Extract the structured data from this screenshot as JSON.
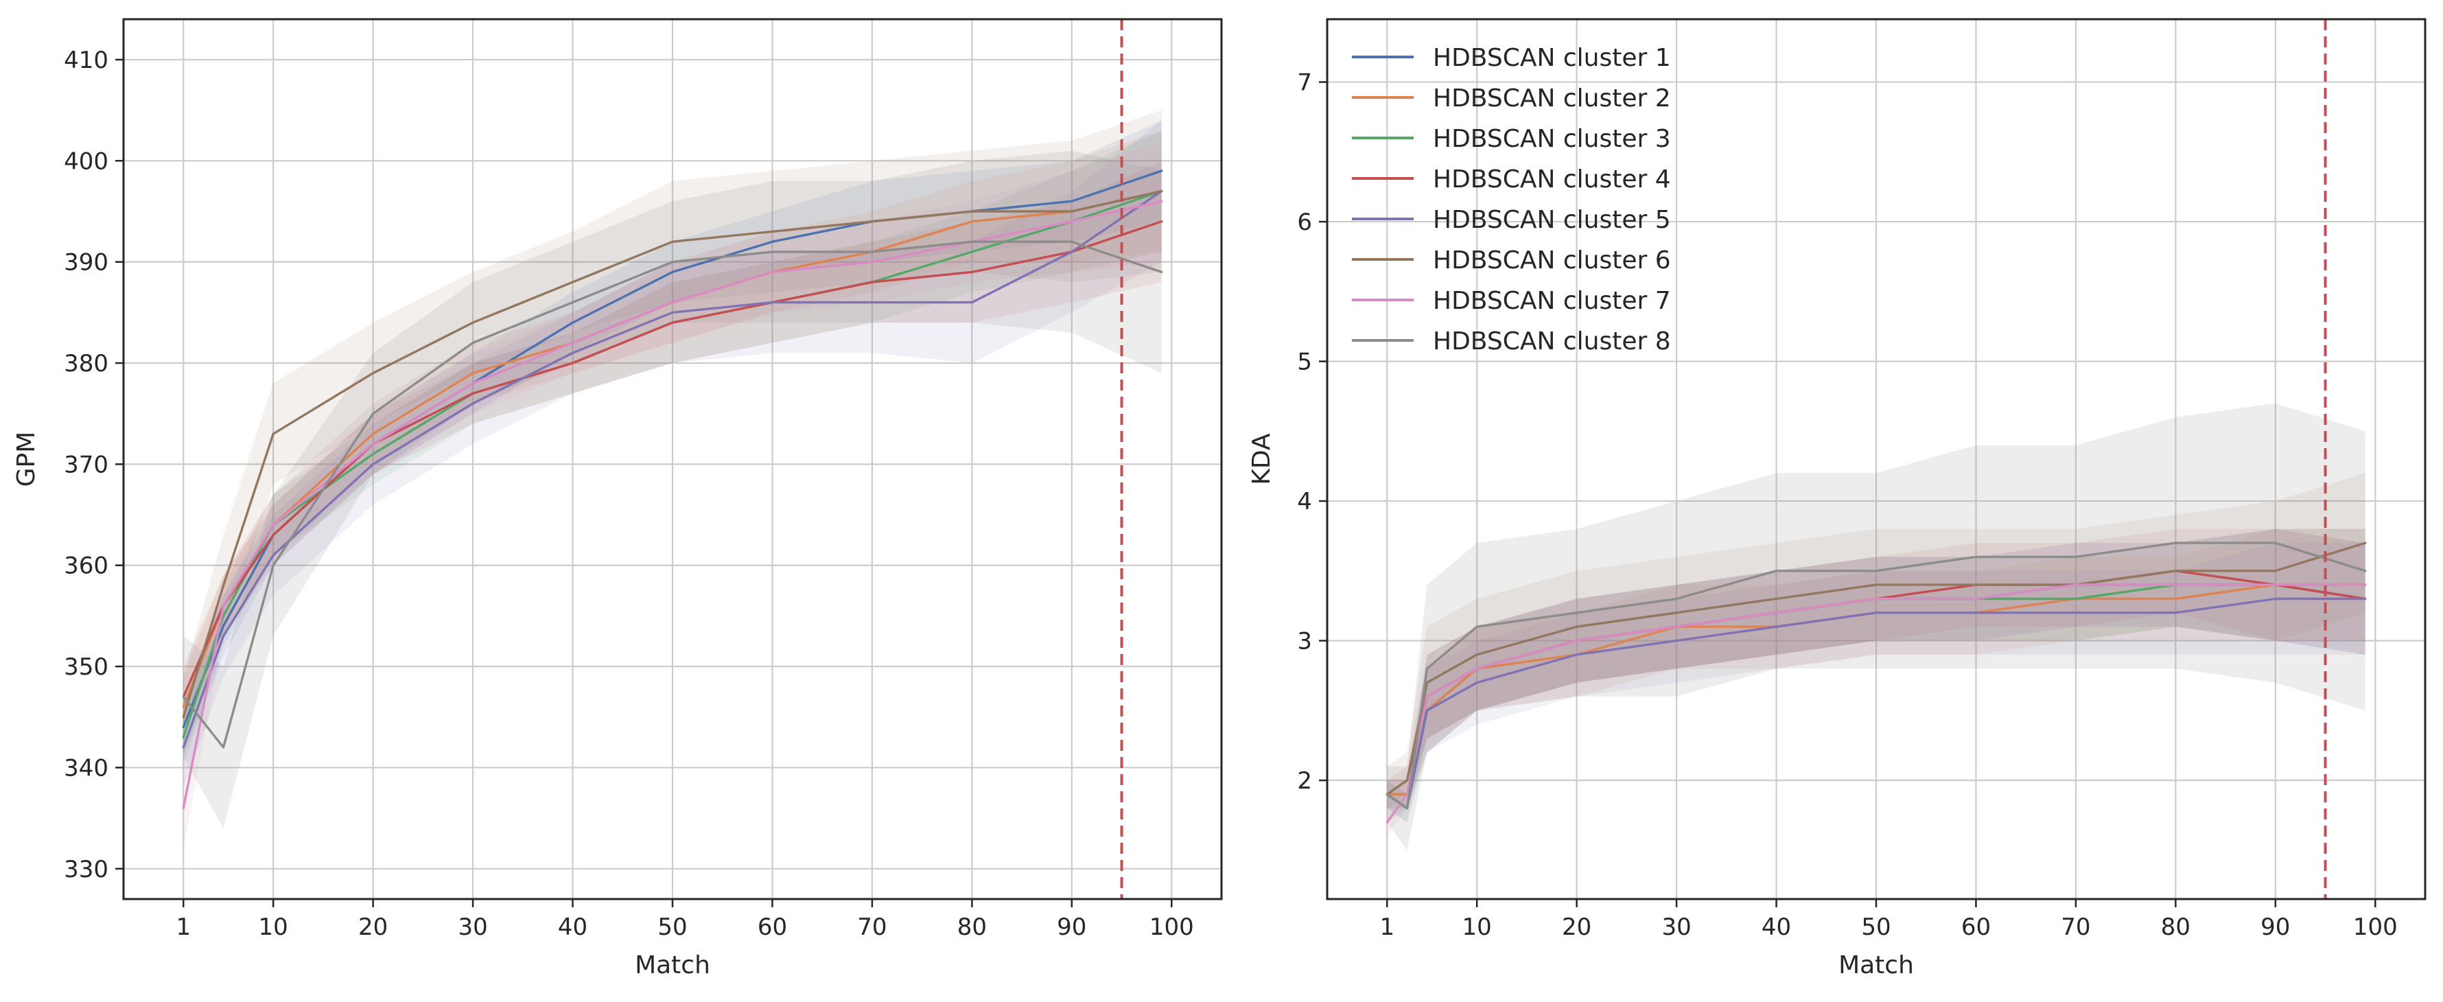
{
  "colors": {
    "series": [
      "#4c72b0",
      "#dd8452",
      "#55a868",
      "#c44e52",
      "#8172b3",
      "#937860",
      "#da8bc3",
      "#8c8c8c"
    ],
    "vline": "#c44e52"
  },
  "legend": {
    "placement": "upper-left-of-right-panel",
    "entries": [
      "HDBSCAN cluster 1",
      "HDBSCAN cluster 2",
      "HDBSCAN cluster 3",
      "HDBSCAN cluster 4",
      "HDBSCAN cluster 5",
      "HDBSCAN cluster 6",
      "HDBSCAN cluster 7",
      "HDBSCAN cluster 8"
    ]
  },
  "chart_data": [
    {
      "type": "line",
      "xlabel": "Match",
      "ylabel": "GPM",
      "xlim": [
        -5,
        105
      ],
      "ylim": [
        327,
        414
      ],
      "xticks": [
        1,
        10,
        20,
        30,
        40,
        50,
        60,
        70,
        80,
        90,
        100
      ],
      "xtick_labels": [
        "1",
        "10",
        "20",
        "30",
        "40",
        "50",
        "60",
        "70",
        "80",
        "90",
        "100"
      ],
      "yticks": [
        330,
        340,
        350,
        360,
        370,
        380,
        390,
        400,
        410
      ],
      "ytick_labels": [
        "330",
        "340",
        "350",
        "360",
        "370",
        "380",
        "390",
        "400",
        "410"
      ],
      "grid": true,
      "vline_x": 95,
      "shaded_band": "variability band around each series",
      "x": [
        1,
        5,
        10,
        20,
        30,
        40,
        50,
        60,
        70,
        80,
        90,
        99
      ],
      "series": [
        {
          "name": "HDBSCAN cluster 1",
          "values": [
            344,
            354,
            363,
            372,
            378,
            384,
            389,
            392,
            394,
            395,
            396,
            399
          ],
          "band": [
            3,
            3,
            3,
            3,
            3,
            3,
            3,
            3,
            4,
            4,
            4,
            5
          ]
        },
        {
          "name": "HDBSCAN cluster 2",
          "values": [
            346,
            356,
            364,
            373,
            379,
            382,
            386,
            389,
            391,
            394,
            395,
            397
          ],
          "band": [
            3,
            3,
            3,
            3,
            3,
            3,
            4,
            4,
            4,
            4,
            5,
            6
          ]
        },
        {
          "name": "HDBSCAN cluster 3",
          "values": [
            343,
            355,
            364,
            371,
            377,
            380,
            384,
            386,
            388,
            391,
            394,
            397
          ],
          "band": [
            3,
            3,
            3,
            3,
            3,
            3,
            4,
            4,
            4,
            4,
            5,
            6
          ]
        },
        {
          "name": "HDBSCAN cluster 4",
          "values": [
            347,
            356,
            363,
            372,
            377,
            380,
            384,
            386,
            388,
            389,
            391,
            394
          ],
          "band": [
            3,
            3,
            3,
            3,
            3,
            3,
            4,
            4,
            4,
            5,
            5,
            6
          ]
        },
        {
          "name": "HDBSCAN cluster 5",
          "values": [
            342,
            353,
            361,
            370,
            376,
            381,
            385,
            386,
            386,
            386,
            391,
            397
          ],
          "band": [
            4,
            4,
            4,
            4,
            4,
            4,
            5,
            5,
            5,
            6,
            6,
            7
          ]
        },
        {
          "name": "HDBSCAN cluster 6",
          "values": [
            345,
            358,
            373,
            379,
            384,
            388,
            392,
            393,
            394,
            395,
            395,
            397
          ],
          "band": [
            4,
            5,
            5,
            5,
            5,
            5,
            6,
            6,
            6,
            6,
            7,
            8
          ]
        },
        {
          "name": "HDBSCAN cluster 7",
          "values": [
            336,
            356,
            364,
            372,
            378,
            382,
            386,
            389,
            390,
            392,
            394,
            396
          ],
          "band": [
            4,
            3,
            3,
            3,
            3,
            3,
            4,
            4,
            4,
            4,
            5,
            6
          ]
        },
        {
          "name": "HDBSCAN cluster 8",
          "values": [
            347,
            342,
            360,
            375,
            382,
            386,
            390,
            391,
            391,
            392,
            392,
            389
          ],
          "band": [
            6,
            8,
            7,
            6,
            6,
            6,
            6,
            7,
            7,
            8,
            9,
            10
          ]
        }
      ]
    },
    {
      "type": "line",
      "xlabel": "Match",
      "ylabel": "KDA",
      "xlim": [
        -5,
        105
      ],
      "ylim": [
        1.15,
        7.45
      ],
      "xticks": [
        1,
        10,
        20,
        30,
        40,
        50,
        60,
        70,
        80,
        90,
        100
      ],
      "xtick_labels": [
        "1",
        "10",
        "20",
        "30",
        "40",
        "50",
        "60",
        "70",
        "80",
        "90",
        "100"
      ],
      "yticks": [
        2,
        3,
        4,
        5,
        6,
        7
      ],
      "ytick_labels": [
        "2",
        "3",
        "4",
        "5",
        "6",
        "7"
      ],
      "grid": true,
      "vline_x": 95,
      "shaded_band": "variability band around each series",
      "x": [
        1,
        3,
        5,
        10,
        20,
        30,
        40,
        50,
        60,
        70,
        80,
        90,
        99
      ],
      "series": [
        {
          "name": "HDBSCAN cluster 1",
          "values": [
            1.9,
            1.9,
            2.5,
            2.8,
            3.0,
            3.1,
            3.2,
            3.3,
            3.3,
            3.4,
            3.4,
            3.4,
            3.3
          ],
          "band": [
            0.1,
            0.1,
            0.3,
            0.3,
            0.3,
            0.3,
            0.3,
            0.3,
            0.3,
            0.3,
            0.3,
            0.4,
            0.4
          ]
        },
        {
          "name": "HDBSCAN cluster 2",
          "values": [
            1.9,
            1.9,
            2.5,
            2.8,
            2.9,
            3.1,
            3.1,
            3.2,
            3.2,
            3.3,
            3.3,
            3.4,
            3.4
          ],
          "band": [
            0.1,
            0.1,
            0.3,
            0.3,
            0.3,
            0.3,
            0.3,
            0.3,
            0.3,
            0.3,
            0.3,
            0.4,
            0.4
          ]
        },
        {
          "name": "HDBSCAN cluster 3",
          "values": [
            1.9,
            1.8,
            2.6,
            2.8,
            3.0,
            3.1,
            3.2,
            3.3,
            3.3,
            3.3,
            3.4,
            3.4,
            3.4
          ],
          "band": [
            0.1,
            0.1,
            0.3,
            0.3,
            0.3,
            0.3,
            0.3,
            0.3,
            0.3,
            0.3,
            0.3,
            0.4,
            0.4
          ]
        },
        {
          "name": "HDBSCAN cluster 4",
          "values": [
            1.9,
            2.0,
            2.6,
            2.8,
            3.0,
            3.1,
            3.2,
            3.3,
            3.4,
            3.4,
            3.5,
            3.4,
            3.3
          ],
          "band": [
            0.1,
            0.1,
            0.3,
            0.3,
            0.3,
            0.3,
            0.3,
            0.3,
            0.3,
            0.3,
            0.3,
            0.4,
            0.4
          ]
        },
        {
          "name": "HDBSCAN cluster 5",
          "values": [
            1.9,
            1.8,
            2.5,
            2.7,
            2.9,
            3.0,
            3.1,
            3.2,
            3.2,
            3.2,
            3.2,
            3.3,
            3.3
          ],
          "band": [
            0.1,
            0.1,
            0.3,
            0.3,
            0.3,
            0.3,
            0.3,
            0.3,
            0.3,
            0.3,
            0.3,
            0.4,
            0.4
          ]
        },
        {
          "name": "HDBSCAN cluster 6",
          "values": [
            1.9,
            2.0,
            2.7,
            2.9,
            3.1,
            3.2,
            3.3,
            3.4,
            3.4,
            3.4,
            3.5,
            3.5,
            3.7
          ],
          "band": [
            0.2,
            0.2,
            0.4,
            0.4,
            0.4,
            0.4,
            0.4,
            0.4,
            0.4,
            0.4,
            0.4,
            0.5,
            0.5
          ]
        },
        {
          "name": "HDBSCAN cluster 7",
          "values": [
            1.7,
            1.9,
            2.6,
            2.8,
            3.0,
            3.1,
            3.2,
            3.3,
            3.3,
            3.4,
            3.4,
            3.4,
            3.4
          ],
          "band": [
            0.1,
            0.1,
            0.3,
            0.3,
            0.3,
            0.3,
            0.3,
            0.3,
            0.3,
            0.3,
            0.3,
            0.4,
            0.4
          ]
        },
        {
          "name": "HDBSCAN cluster 8",
          "values": [
            1.9,
            1.8,
            2.8,
            3.1,
            3.2,
            3.3,
            3.5,
            3.5,
            3.6,
            3.6,
            3.7,
            3.7,
            3.5
          ],
          "band": [
            0.2,
            0.3,
            0.6,
            0.6,
            0.6,
            0.7,
            0.7,
            0.7,
            0.8,
            0.8,
            0.9,
            1.0,
            1.0
          ]
        }
      ]
    }
  ]
}
